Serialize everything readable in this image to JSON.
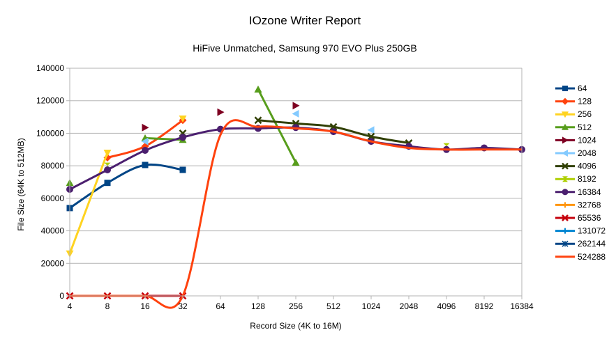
{
  "chart_data": {
    "type": "line",
    "title": "IOzone Writer Report",
    "subtitle": "HiFive Unmatched, Samsung 970 EVO Plus 250GB",
    "xlabel": "Record Size (4K to 16M)",
    "ylabel": "File Size (64K to 512MB)",
    "categories": [
      "4",
      "8",
      "16",
      "32",
      "64",
      "128",
      "256",
      "512",
      "1024",
      "2048",
      "4096",
      "8192",
      "16384"
    ],
    "ylim": [
      0,
      140000
    ],
    "yticks": [
      0,
      20000,
      40000,
      60000,
      80000,
      100000,
      120000,
      140000
    ],
    "grid": true,
    "legend_position": "right",
    "series": [
      {
        "name": "64",
        "color": "#004586",
        "marker": "square",
        "values": [
          54000,
          69500,
          80500,
          77500,
          null,
          null,
          null,
          null,
          null,
          null,
          null,
          null,
          null
        ]
      },
      {
        "name": "128",
        "color": "#ff420e",
        "marker": "diamond",
        "values": [
          null,
          85000,
          92000,
          108000,
          null,
          null,
          null,
          null,
          null,
          null,
          null,
          null,
          null
        ]
      },
      {
        "name": "256",
        "color": "#ffd320",
        "marker": "triangle-down",
        "values": [
          26000,
          88000,
          null,
          109000,
          null,
          null,
          null,
          null,
          null,
          null,
          null,
          null,
          null
        ]
      },
      {
        "name": "512",
        "color": "#579d1c",
        "marker": "triangle-up",
        "values": [
          69500,
          null,
          97000,
          96000,
          null,
          127000,
          82000,
          null,
          null,
          null,
          null,
          null,
          null
        ]
      },
      {
        "name": "1024",
        "color": "#7e0021",
        "marker": "triangle-right",
        "values": [
          null,
          null,
          103500,
          null,
          113000,
          null,
          117000,
          null,
          null,
          null,
          null,
          null,
          null
        ]
      },
      {
        "name": "2048",
        "color": "#83caff",
        "marker": "triangle-left",
        "values": [
          null,
          null,
          95000,
          null,
          null,
          null,
          112000,
          null,
          102000,
          null,
          null,
          null,
          null
        ]
      },
      {
        "name": "4096",
        "color": "#314004",
        "marker": "x",
        "values": [
          null,
          null,
          null,
          100000,
          null,
          108000,
          106000,
          104000,
          98000,
          94000,
          null,
          null,
          null
        ]
      },
      {
        "name": "8192",
        "color": "#aecf00",
        "marker": "bowtie",
        "values": [
          null,
          80000,
          null,
          null,
          null,
          null,
          null,
          null,
          null,
          null,
          92000,
          null,
          null
        ]
      },
      {
        "name": "16384",
        "color": "#4b1f6f",
        "marker": "circle",
        "values": [
          65500,
          77500,
          89500,
          97500,
          102500,
          103000,
          103500,
          101000,
          95000,
          92000,
          90000,
          91000,
          90000
        ]
      },
      {
        "name": "32768",
        "color": "#ff950e",
        "marker": "plus",
        "values": [
          null,
          null,
          null,
          null,
          null,
          null,
          null,
          null,
          null,
          null,
          null,
          null,
          null
        ]
      },
      {
        "name": "65536",
        "color": "#c5000b",
        "marker": "x",
        "values": [
          0,
          0,
          0,
          0,
          null,
          null,
          null,
          null,
          null,
          null,
          null,
          null,
          null
        ]
      },
      {
        "name": "131072",
        "color": "#0084d1",
        "marker": "plus",
        "values": [
          null,
          null,
          null,
          null,
          null,
          null,
          null,
          null,
          null,
          null,
          null,
          null,
          null
        ]
      },
      {
        "name": "262144",
        "color": "#004586",
        "marker": "star",
        "values": [
          null,
          null,
          null,
          null,
          null,
          null,
          null,
          null,
          null,
          null,
          null,
          null,
          null
        ]
      },
      {
        "name": "524288",
        "color": "#ff420e",
        "marker": "none",
        "values": [
          0,
          0,
          0,
          0,
          99000,
          104000,
          103000,
          101000,
          95000,
          91000,
          90000,
          90000,
          90000
        ]
      }
    ]
  }
}
